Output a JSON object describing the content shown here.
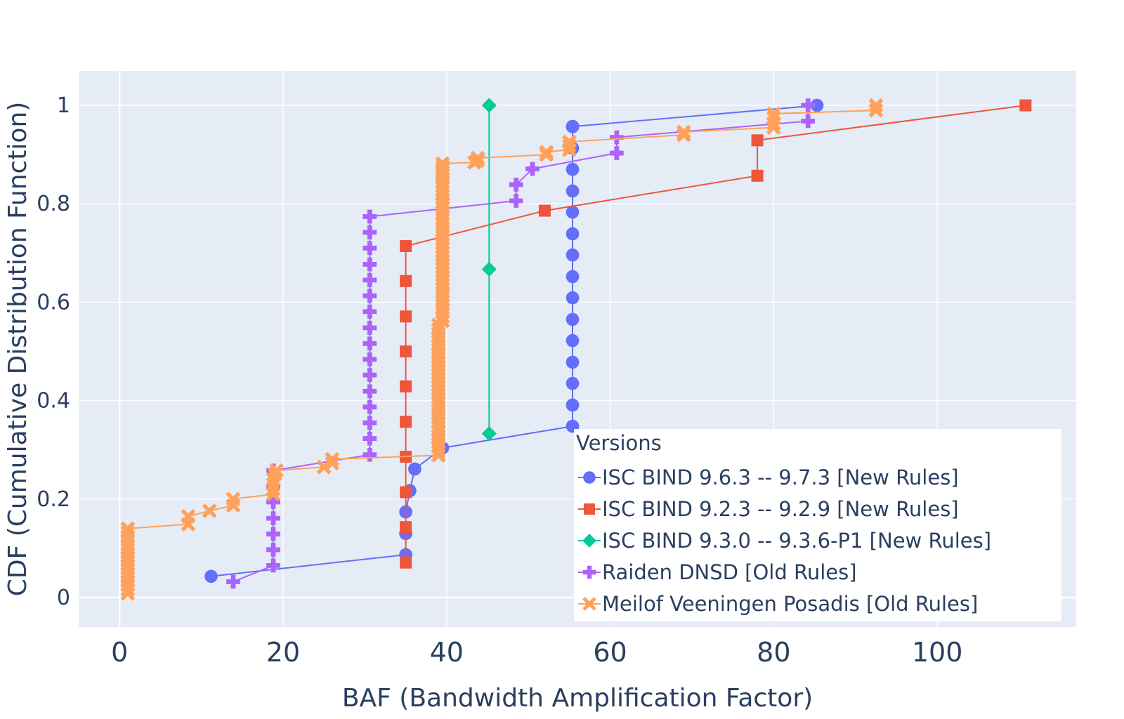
{
  "chart_data": {
    "type": "line",
    "xlabel": "BAF (Bandwidth Amplification Factor)",
    "ylabel": "CDF (Cumulative Distribution Function)",
    "xlim": [
      -5,
      117
    ],
    "ylim": [
      -0.06,
      1.07
    ],
    "xticks": [
      0,
      20,
      40,
      60,
      80,
      100
    ],
    "yticks": [
      0,
      0.2,
      0.4,
      0.6,
      0.8,
      1
    ],
    "xtick_labels": [
      "0",
      "20",
      "40",
      "60",
      "80",
      "100"
    ],
    "ytick_labels": [
      "0",
      "0.2",
      "0.4",
      "0.6",
      "0.8",
      "1"
    ],
    "grid": true,
    "legend": {
      "title": "Versions",
      "placement": "bottom-right"
    },
    "series": [
      {
        "name": "ISC BIND 9.6.3 -- 9.7.3 [New Rules]",
        "color": "#636efa",
        "marker": "circle",
        "x": [
          11.2,
          35.0,
          35.0,
          35.0,
          35.5,
          36.1,
          39.5,
          55.4,
          55.4,
          55.4,
          55.4,
          55.4,
          55.4,
          55.4,
          55.4,
          55.4,
          55.4,
          55.4,
          55.4,
          55.4,
          55.4,
          55.4,
          55.4,
          55.4,
          55.4,
          55.4,
          55.4,
          85.3
        ],
        "y": [
          0.043,
          0.087,
          0.13,
          0.174,
          0.217,
          0.261,
          0.304,
          0.348,
          0.391,
          0.435,
          0.478,
          0.522,
          0.565,
          0.609,
          0.652,
          0.696,
          0.739,
          0.783,
          0.826,
          0.87,
          0.913,
          0.957,
          0.957,
          0.957,
          0.957,
          0.957,
          0.957,
          1.0
        ]
      },
      {
        "name": "ISC BIND 9.2.3 -- 9.2.9 [New Rules]",
        "color": "#ef553b",
        "marker": "square",
        "x": [
          35.0,
          35.0,
          35.0,
          35.0,
          35.0,
          35.0,
          35.0,
          35.0,
          35.0,
          35.0,
          52.0,
          78.0,
          78.0,
          110.8
        ],
        "y": [
          0.071,
          0.143,
          0.214,
          0.286,
          0.357,
          0.429,
          0.5,
          0.571,
          0.643,
          0.714,
          0.786,
          0.857,
          0.929,
          1.0
        ]
      },
      {
        "name": "ISC BIND 9.3.0 -- 9.3.6-P1 [New Rules]",
        "color": "#00cc96",
        "marker": "diamond",
        "x": [
          45.2,
          45.2,
          45.2
        ],
        "y": [
          0.333,
          0.667,
          1.0
        ]
      },
      {
        "name": "Raiden DNSD  [Old Rules]",
        "color": "#ab63fa",
        "marker": "cross",
        "x": [
          13.9,
          18.8,
          18.8,
          18.8,
          18.8,
          18.8,
          18.8,
          18.8,
          30.6,
          30.6,
          30.6,
          30.6,
          30.6,
          30.6,
          30.6,
          30.6,
          30.6,
          30.6,
          30.6,
          30.6,
          30.6,
          30.6,
          30.6,
          30.6,
          48.5,
          48.5,
          50.5,
          60.8,
          60.8,
          84.2,
          84.2
        ],
        "y": [
          0.032,
          0.065,
          0.097,
          0.129,
          0.161,
          0.194,
          0.226,
          0.258,
          0.29,
          0.323,
          0.355,
          0.387,
          0.419,
          0.452,
          0.484,
          0.516,
          0.548,
          0.581,
          0.613,
          0.645,
          0.677,
          0.71,
          0.742,
          0.774,
          0.806,
          0.839,
          0.871,
          0.903,
          0.935,
          0.968,
          1.0
        ]
      },
      {
        "name": "Meilof Veeningen Posadis  [Old Rules]",
        "color": "#ffa15a",
        "marker": "x",
        "x": [
          1.0,
          1.0,
          1.0,
          1.0,
          1.0,
          1.0,
          1.0,
          1.0,
          1.0,
          1.0,
          1.0,
          1.0,
          1.0,
          1.0,
          1.0,
          1.0,
          1.0,
          8.4,
          8.4,
          11.0,
          13.9,
          13.9,
          18.8,
          18.8,
          18.8,
          18.8,
          19.0,
          19.2,
          25.0,
          26.0,
          26.0,
          39.0,
          39.0,
          39.0,
          39.0,
          39.0,
          39.0,
          39.0,
          39.0,
          39.0,
          39.0,
          39.0,
          39.0,
          39.0,
          39.0,
          39.0,
          39.0,
          39.0,
          39.0,
          39.0,
          39.0,
          39.0,
          39.0,
          39.0,
          39.0,
          39.0,
          39.0,
          39.0,
          39.0,
          39.0,
          39.0,
          39.0,
          39.0,
          39.0,
          39.5,
          39.5,
          39.5,
          39.5,
          39.5,
          39.5,
          39.5,
          39.5,
          39.5,
          39.5,
          39.5,
          39.5,
          39.5,
          39.5,
          39.5,
          39.5,
          39.5,
          39.5,
          39.5,
          39.5,
          39.5,
          39.5,
          39.5,
          39.5,
          39.5,
          39.5,
          39.5,
          39.5,
          39.5,
          39.5,
          39.5,
          39.5,
          39.5,
          39.5,
          39.5,
          39.5,
          39.5,
          39.5,
          39.5,
          39.5,
          39.5,
          43.4,
          43.8,
          43.8,
          52.2,
          52.2,
          55.0,
          55.0,
          55.0,
          69.0,
          69.0,
          80.0,
          80.0,
          80.0,
          80.0,
          92.5,
          92.5
        ],
        "y": [
          0.008,
          0.016,
          0.025,
          0.033,
          0.041,
          0.049,
          0.058,
          0.066,
          0.074,
          0.082,
          0.091,
          0.099,
          0.107,
          0.116,
          0.124,
          0.132,
          0.14,
          0.149,
          0.165,
          0.176,
          0.187,
          0.2,
          0.21,
          0.22,
          0.23,
          0.24,
          0.25,
          0.258,
          0.265,
          0.273,
          0.281,
          0.289,
          0.297,
          0.306,
          0.314,
          0.322,
          0.33,
          0.339,
          0.347,
          0.355,
          0.364,
          0.372,
          0.38,
          0.388,
          0.397,
          0.405,
          0.413,
          0.421,
          0.43,
          0.438,
          0.446,
          0.455,
          0.463,
          0.471,
          0.479,
          0.488,
          0.496,
          0.504,
          0.512,
          0.521,
          0.529,
          0.537,
          0.545,
          0.554,
          0.562,
          0.57,
          0.579,
          0.587,
          0.595,
          0.603,
          0.612,
          0.62,
          0.628,
          0.636,
          0.645,
          0.653,
          0.661,
          0.669,
          0.678,
          0.686,
          0.694,
          0.702,
          0.711,
          0.719,
          0.727,
          0.736,
          0.744,
          0.752,
          0.76,
          0.769,
          0.777,
          0.785,
          0.793,
          0.802,
          0.81,
          0.818,
          0.826,
          0.835,
          0.843,
          0.851,
          0.859,
          0.865,
          0.87,
          0.876,
          0.882,
          0.884,
          0.888,
          0.893,
          0.9,
          0.905,
          0.91,
          0.918,
          0.926,
          0.94,
          0.946,
          0.955,
          0.963,
          0.975,
          0.983,
          0.99,
          1.0
        ]
      }
    ]
  }
}
